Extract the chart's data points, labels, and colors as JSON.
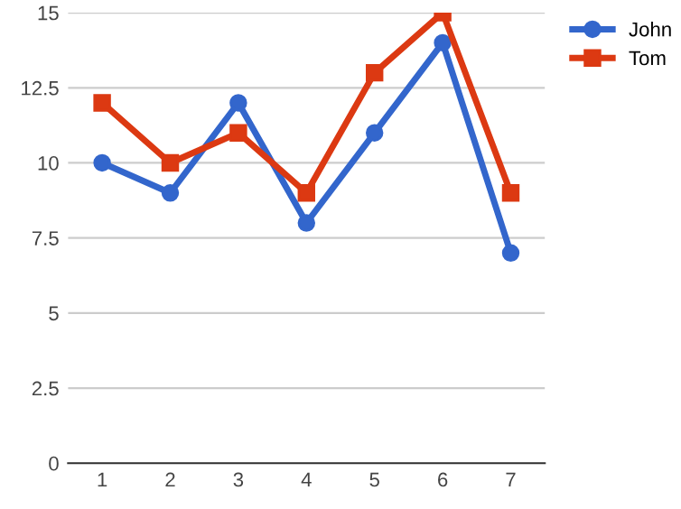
{
  "chart_data": {
    "type": "line",
    "categories": [
      "1",
      "2",
      "3",
      "4",
      "5",
      "6",
      "7"
    ],
    "series": [
      {
        "name": "John",
        "color": "#3366cc",
        "marker": "circle",
        "values": [
          10,
          9,
          12,
          8,
          11,
          14,
          7
        ]
      },
      {
        "name": "Tom",
        "color": "#dc3912",
        "marker": "square",
        "values": [
          12,
          10,
          11,
          9,
          13,
          15,
          9
        ]
      }
    ],
    "ylim": [
      0,
      15
    ],
    "yticks": [
      0,
      2.5,
      5,
      7.5,
      10,
      12.5,
      15
    ],
    "grid": "y",
    "legend": "top right",
    "line_style": "solid"
  }
}
